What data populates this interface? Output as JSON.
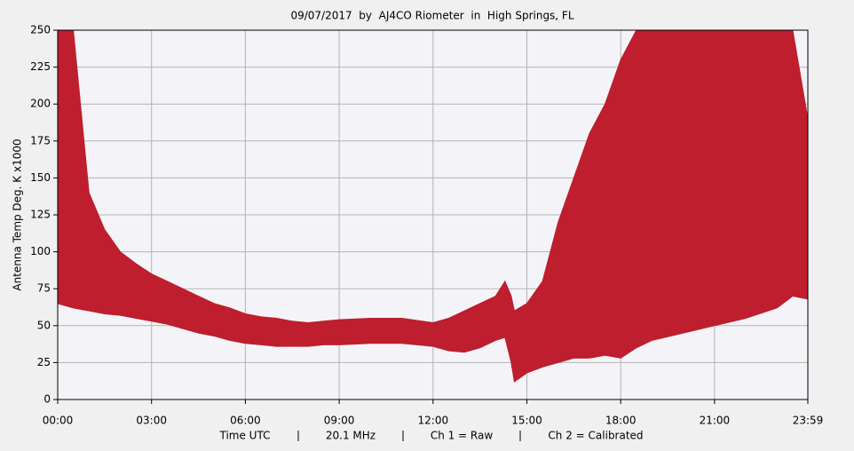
{
  "chart_data": {
    "type": "band",
    "title": "09/07/2017  by  AJ4CO Riometer  in  High Springs, FL",
    "ylabel": "Antenna Temp Deg. K x1000",
    "footer": [
      "Time UTC",
      "20.1 MHz",
      "Ch 1 = Raw",
      "Ch 2 = Calibrated"
    ],
    "color": "#be1e2d",
    "x": [
      0,
      0.5,
      1,
      1.5,
      2,
      2.5,
      3,
      3.5,
      4,
      4.5,
      5,
      5.5,
      6,
      6.5,
      7,
      7.5,
      8,
      8.5,
      9,
      10,
      11,
      12,
      12.5,
      13,
      13.5,
      14,
      14.3,
      14.5,
      14.6,
      15,
      15.5,
      16,
      16.5,
      17,
      17.5,
      18,
      18.5,
      19,
      20,
      21,
      22,
      23,
      23.5,
      23.983
    ],
    "upper": [
      250,
      250,
      140,
      115,
      100,
      92,
      85,
      80,
      75,
      70,
      65,
      62,
      58,
      56,
      55,
      53,
      52,
      53,
      54,
      55,
      55,
      52,
      55,
      60,
      65,
      70,
      80,
      70,
      60,
      65,
      80,
      120,
      150,
      180,
      200,
      230,
      250,
      250,
      250,
      250,
      250,
      250,
      250,
      190
    ],
    "lower": [
      65,
      62,
      60,
      58,
      57,
      55,
      53,
      51,
      48,
      45,
      43,
      40,
      38,
      37,
      36,
      36,
      36,
      37,
      37,
      38,
      38,
      36,
      33,
      32,
      35,
      40,
      42,
      25,
      12,
      18,
      22,
      25,
      28,
      28,
      30,
      28,
      35,
      40,
      45,
      50,
      55,
      62,
      70,
      68
    ],
    "xlim": [
      0,
      23.983
    ],
    "xticks": [
      {
        "value": 0,
        "label": "00:00"
      },
      {
        "value": 3,
        "label": "03:00"
      },
      {
        "value": 6,
        "label": "06:00"
      },
      {
        "value": 9,
        "label": "09:00"
      },
      {
        "value": 12,
        "label": "12:00"
      },
      {
        "value": 15,
        "label": "15:00"
      },
      {
        "value": 18,
        "label": "18:00"
      },
      {
        "value": 21,
        "label": "21:00"
      },
      {
        "value": 23.983,
        "label": "23:59"
      }
    ],
    "ylim": [
      0,
      250
    ],
    "yticks": [
      0,
      25,
      50,
      75,
      100,
      125,
      150,
      175,
      200,
      225,
      250
    ],
    "grid": true
  }
}
